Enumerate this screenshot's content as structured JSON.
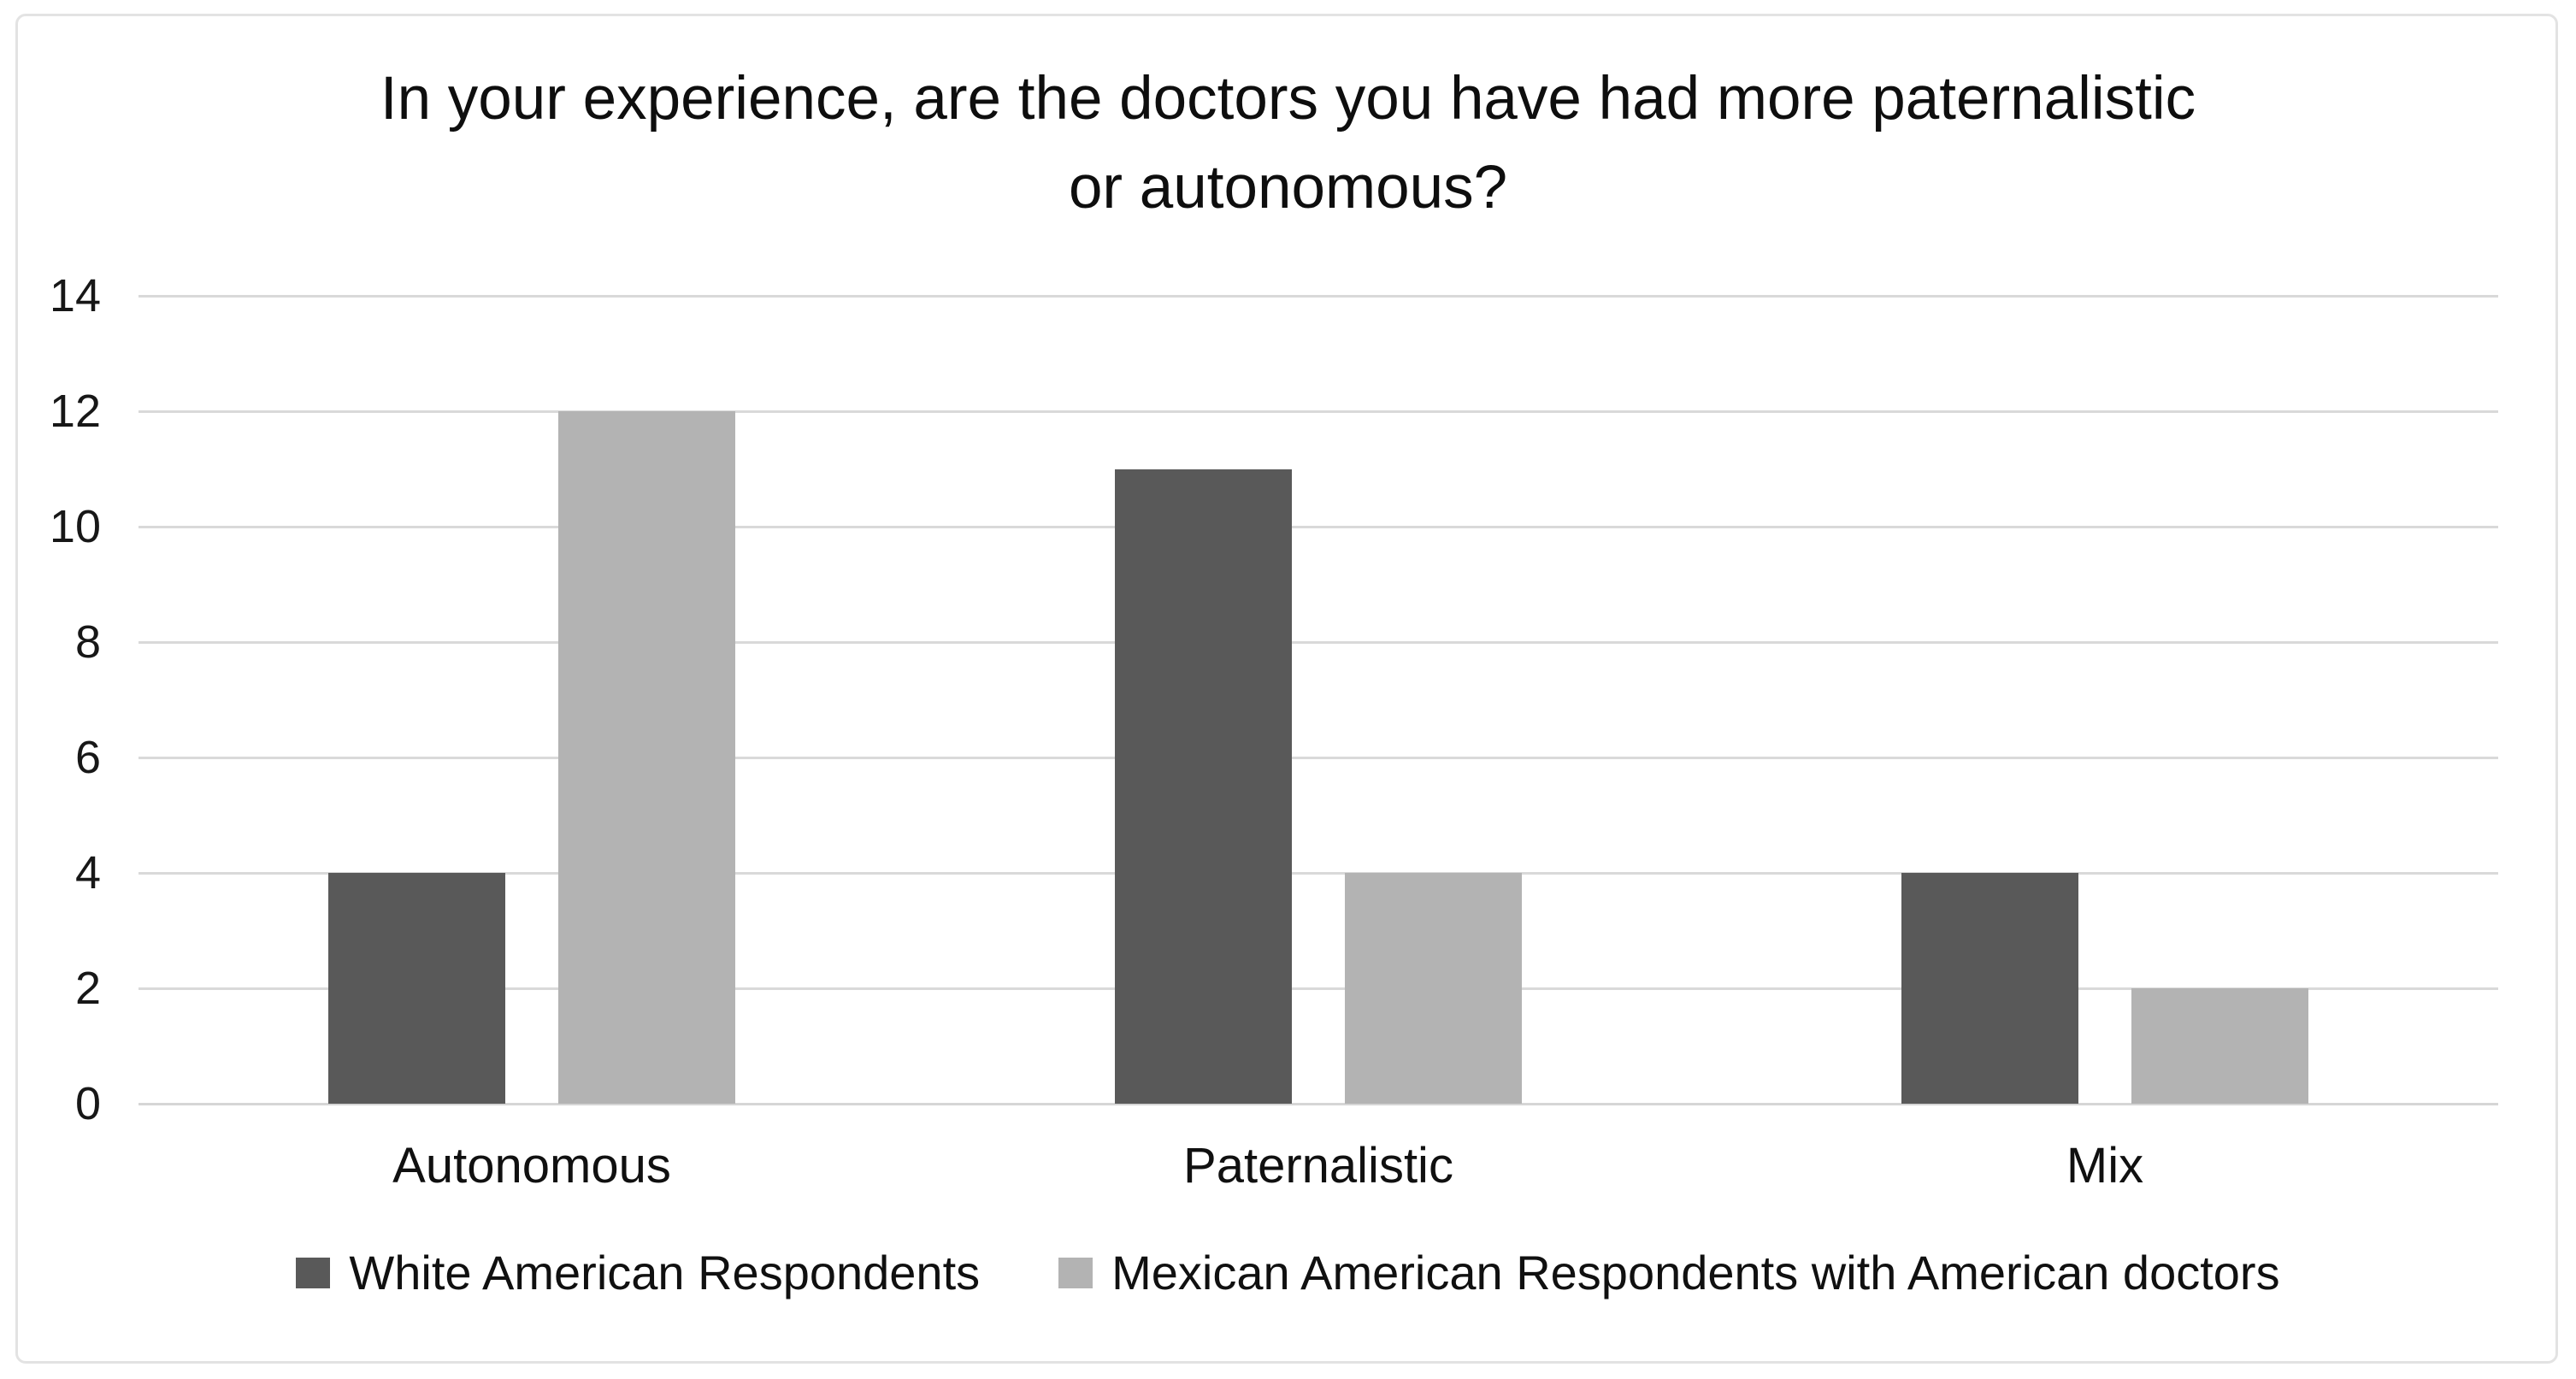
{
  "figure": {
    "title_lines": [
      "In your experience, are the doctors you have had more paternalistic",
      "or autonomous?"
    ]
  },
  "chart_data": {
    "type": "bar",
    "title": "In your experience, are the doctors you have had more paternalistic or autonomous?",
    "categories": [
      "Autonomous",
      "Paternalistic",
      "Mix"
    ],
    "series": [
      {
        "name": "White American Respondents",
        "color": "#595959",
        "values": [
          4,
          11,
          4
        ]
      },
      {
        "name": "Mexican American Respondents with American doctors",
        "color": "#b3b3b3",
        "values": [
          12,
          4,
          2
        ]
      }
    ],
    "xlabel": "",
    "ylabel": "",
    "ylim": [
      0,
      14
    ],
    "yticks": [
      0,
      2,
      4,
      6,
      8,
      10,
      12,
      14
    ],
    "grid": "horizontal-gridlines",
    "legend_position": "bottom",
    "colors": {
      "gridline": "#d9d9d9",
      "frame_border": "#e3e3e3",
      "title_text": "#0e0e0e",
      "label_text": "#101010"
    }
  }
}
